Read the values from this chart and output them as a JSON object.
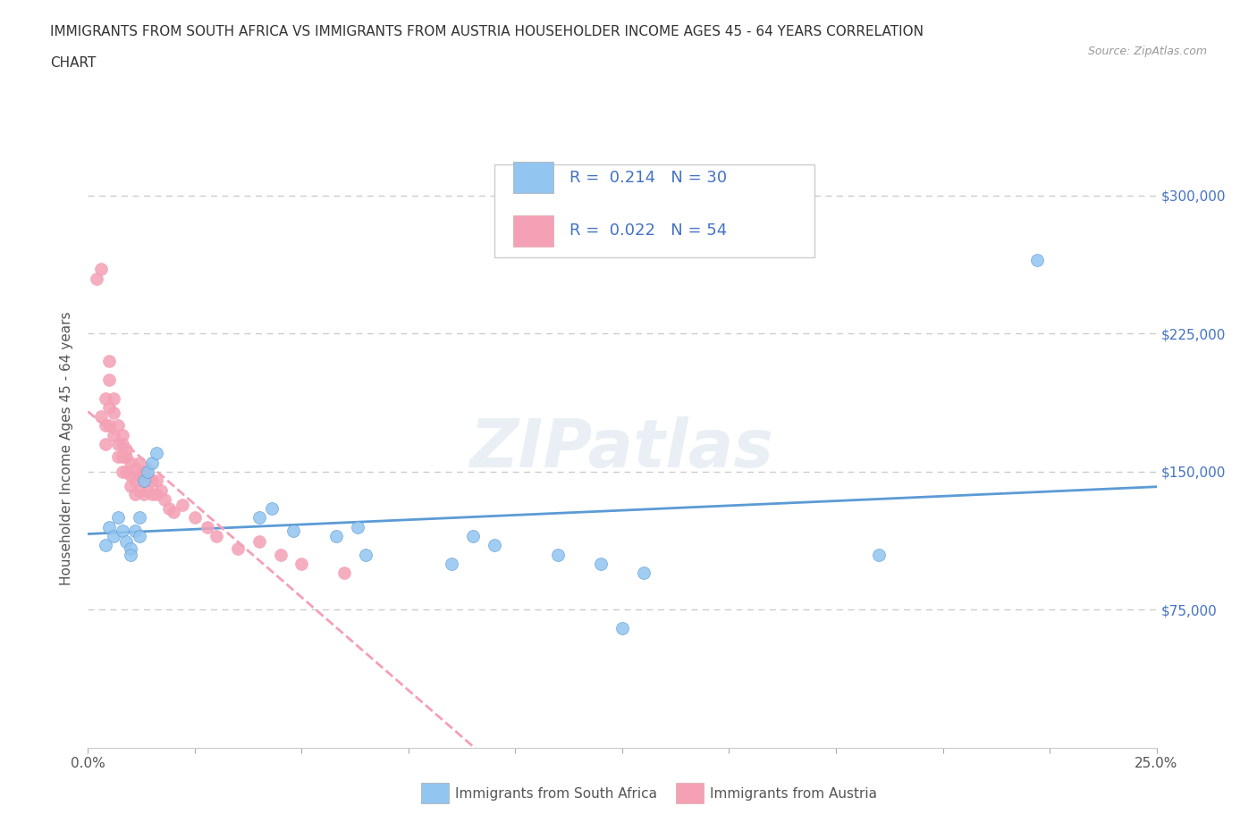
{
  "title_line1": "IMMIGRANTS FROM SOUTH AFRICA VS IMMIGRANTS FROM AUSTRIA HOUSEHOLDER INCOME AGES 45 - 64 YEARS CORRELATION",
  "title_line2": "CHART",
  "source": "Source: ZipAtlas.com",
  "ylabel": "Householder Income Ages 45 - 64 years",
  "xlim": [
    0.0,
    0.25
  ],
  "ylim": [
    0,
    325000
  ],
  "xtick_positions": [
    0.0,
    0.025,
    0.05,
    0.075,
    0.1,
    0.125,
    0.15,
    0.175,
    0.2,
    0.225,
    0.25
  ],
  "xtick_labels_shown": {
    "0.0": "0.0%",
    "0.25": "25.0%"
  },
  "yticks": [
    75000,
    150000,
    225000,
    300000
  ],
  "ytick_labels": [
    "$75,000",
    "$150,000",
    "$225,000",
    "$300,000"
  ],
  "legend_r1": "0.214",
  "legend_n1": "30",
  "legend_r2": "0.022",
  "legend_n2": "54",
  "color_blue": "#92C5F0",
  "color_pink": "#F4A0B5",
  "color_blue_line": "#5B9BD5",
  "color_pink_line": "#F4A0B5",
  "color_legend_text": "#4472C4",
  "watermark": "ZIPatlas",
  "background_color": "#FFFFFF",
  "grid_color": "#CCCCCC",
  "south_africa_x": [
    0.004,
    0.005,
    0.006,
    0.007,
    0.008,
    0.009,
    0.01,
    0.01,
    0.011,
    0.012,
    0.012,
    0.013,
    0.014,
    0.015,
    0.016,
    0.04,
    0.043,
    0.048,
    0.058,
    0.063,
    0.065,
    0.085,
    0.09,
    0.095,
    0.11,
    0.12,
    0.125,
    0.13,
    0.185,
    0.222
  ],
  "south_africa_y": [
    110000,
    120000,
    115000,
    125000,
    118000,
    112000,
    108000,
    105000,
    118000,
    115000,
    125000,
    145000,
    150000,
    155000,
    160000,
    125000,
    130000,
    118000,
    115000,
    120000,
    105000,
    100000,
    115000,
    110000,
    105000,
    100000,
    65000,
    95000,
    105000,
    265000
  ],
  "austria_x": [
    0.002,
    0.003,
    0.003,
    0.004,
    0.004,
    0.004,
    0.005,
    0.005,
    0.005,
    0.005,
    0.006,
    0.006,
    0.006,
    0.007,
    0.007,
    0.007,
    0.008,
    0.008,
    0.008,
    0.008,
    0.009,
    0.009,
    0.009,
    0.01,
    0.01,
    0.01,
    0.011,
    0.011,
    0.011,
    0.012,
    0.012,
    0.012,
    0.013,
    0.013,
    0.013,
    0.014,
    0.014,
    0.015,
    0.015,
    0.016,
    0.016,
    0.017,
    0.018,
    0.019,
    0.02,
    0.022,
    0.025,
    0.028,
    0.03,
    0.035,
    0.04,
    0.045,
    0.05,
    0.06
  ],
  "austria_y": [
    255000,
    260000,
    180000,
    190000,
    175000,
    165000,
    210000,
    200000,
    185000,
    175000,
    190000,
    182000,
    170000,
    175000,
    165000,
    158000,
    170000,
    165000,
    158000,
    150000,
    162000,
    158000,
    150000,
    155000,
    148000,
    142000,
    152000,
    145000,
    138000,
    155000,
    148000,
    140000,
    150000,
    145000,
    138000,
    148000,
    140000,
    145000,
    138000,
    145000,
    138000,
    140000,
    135000,
    130000,
    128000,
    132000,
    125000,
    120000,
    115000,
    108000,
    112000,
    105000,
    100000,
    95000
  ]
}
